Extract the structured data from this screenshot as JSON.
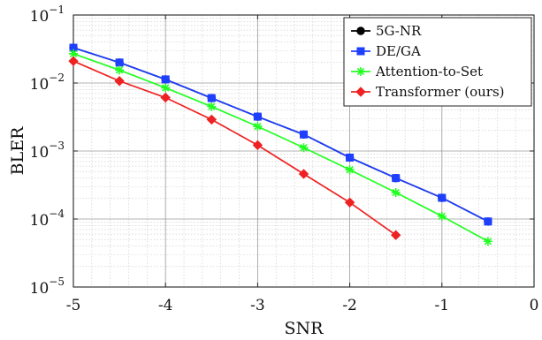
{
  "chart_data": {
    "type": "line",
    "title": "",
    "xlabel": "SNR",
    "ylabel": "BLER",
    "xscale": "linear",
    "yscale": "log",
    "xlim": [
      -5,
      0
    ],
    "ylim": [
      1e-05,
      0.1
    ],
    "xticks": [
      -5,
      -4,
      -3,
      -2,
      -1,
      0
    ],
    "xtick_labels": [
      "-5",
      "-4",
      "-3",
      "-2",
      "-1",
      "0"
    ],
    "yticks": [
      1e-05,
      0.0001,
      0.001,
      0.01,
      0.1
    ],
    "ytick_labels": [
      {
        "base": "10",
        "exp": "−5"
      },
      {
        "base": "10",
        "exp": "−4"
      },
      {
        "base": "10",
        "exp": "−3"
      },
      {
        "base": "10",
        "exp": "−2"
      },
      {
        "base": "10",
        "exp": "−1"
      }
    ],
    "grid": true,
    "minor_grid": true,
    "legend_position": "top-right",
    "series": [
      {
        "name": "5G-NR",
        "color": "#000000",
        "marker": "circle",
        "x": [
          -5,
          -4.5,
          -4,
          -3.5,
          -3,
          -2.5,
          -2,
          -1.5,
          -1,
          -0.5
        ],
        "y": [
          0.033,
          0.02,
          0.0113,
          0.006,
          0.0032,
          0.00175,
          0.0008,
          0.0004,
          0.000205,
          9.2e-05
        ]
      },
      {
        "name": "DE/GA",
        "color": "#1f3fff",
        "marker": "square",
        "x": [
          -5,
          -4.5,
          -4,
          -3.5,
          -3,
          -2.5,
          -2,
          -1.5,
          -1,
          -0.5
        ],
        "y": [
          0.033,
          0.02,
          0.0113,
          0.006,
          0.0032,
          0.00175,
          0.0008,
          0.0004,
          0.000205,
          9.2e-05
        ]
      },
      {
        "name": "Attention-to-Set",
        "color": "#22ff22",
        "marker": "star",
        "x": [
          -5,
          -4.5,
          -4,
          -3.5,
          -3,
          -2.5,
          -2,
          -1.5,
          -1,
          -0.5
        ],
        "y": [
          0.027,
          0.0155,
          0.0085,
          0.0045,
          0.0023,
          0.00112,
          0.00053,
          0.000245,
          0.00011,
          4.7e-05
        ]
      },
      {
        "name": "Transformer (ours)",
        "color": "#ee2222",
        "marker": "diamond",
        "x": [
          -5,
          -4.5,
          -4,
          -3.5,
          -3,
          -2.5,
          -2,
          -1.5
        ],
        "y": [
          0.021,
          0.0107,
          0.0061,
          0.0029,
          0.00122,
          0.00046,
          0.000175,
          5.8e-05
        ]
      }
    ]
  }
}
